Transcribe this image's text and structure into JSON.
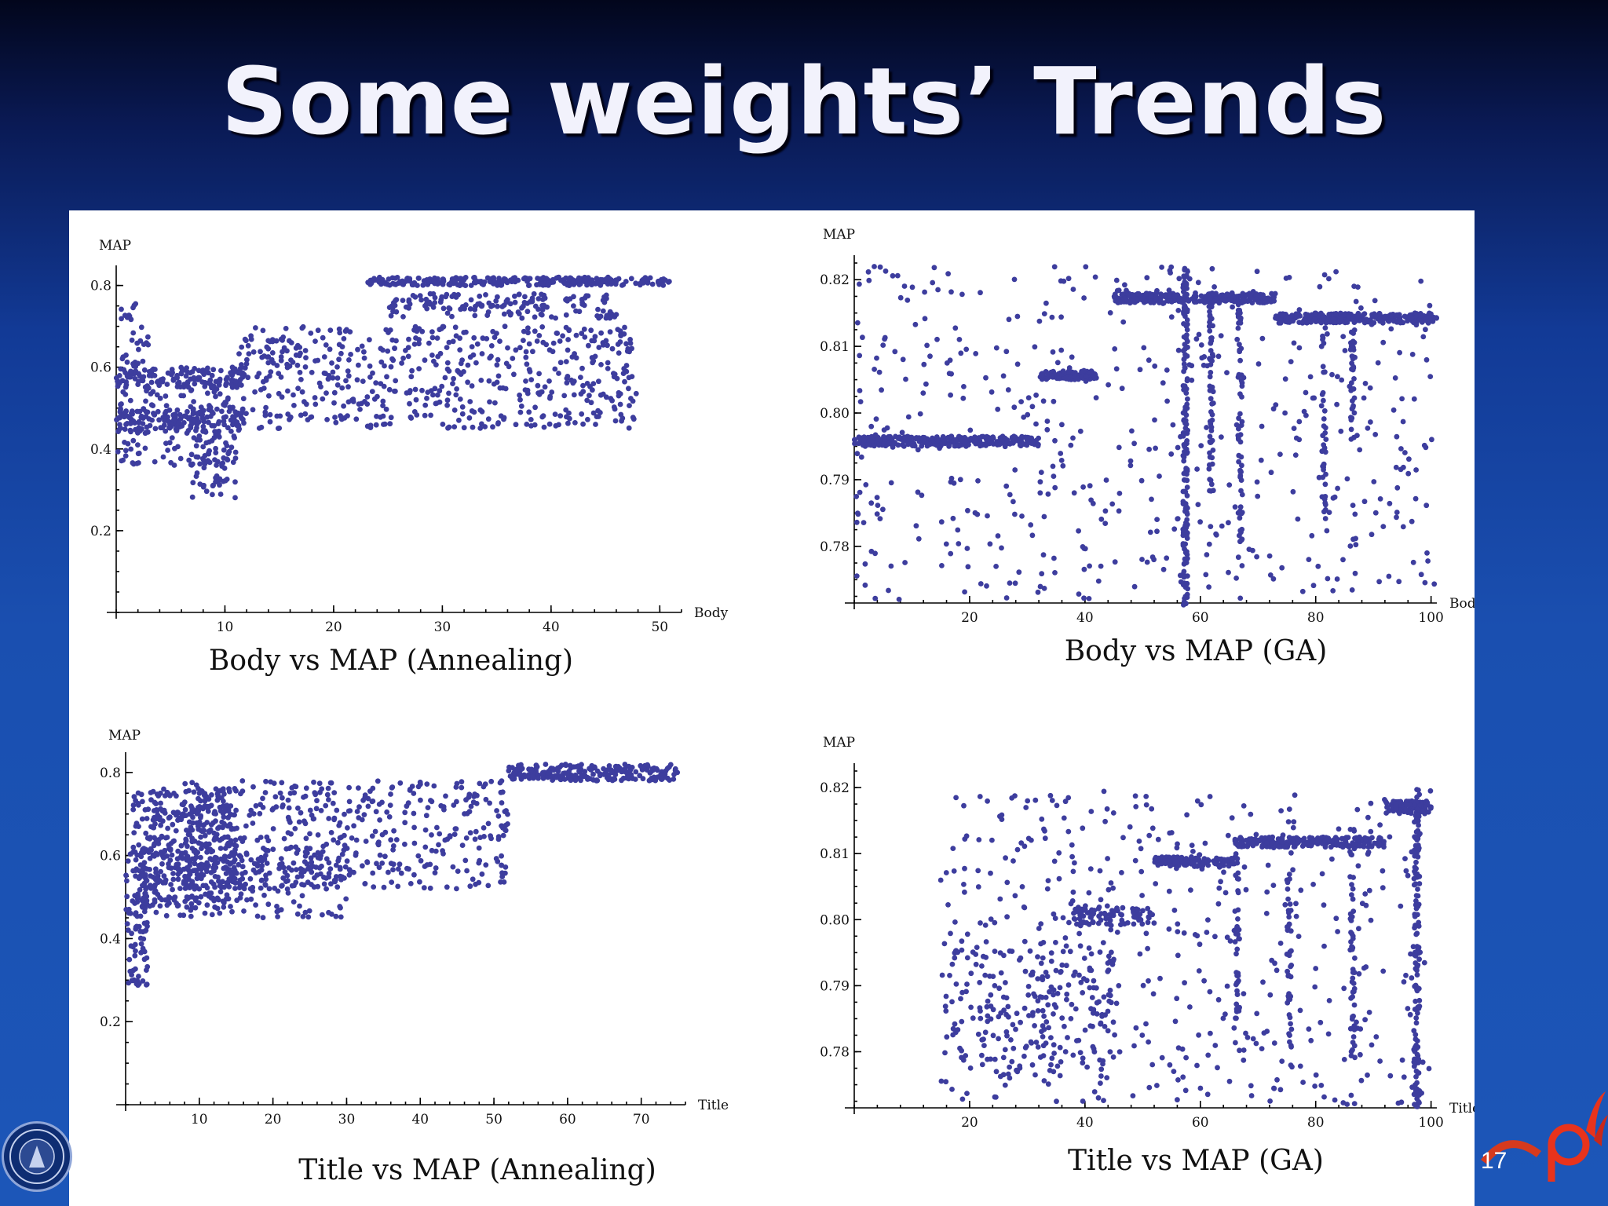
{
  "slide": {
    "title": "Some weights’ Trends",
    "page_number": "17",
    "colors": {
      "background": "#1a4fb0",
      "title": "#f2f2fc",
      "points": "#3d3d9e",
      "panel": "#ffffff",
      "logo_accent": "#e8331c"
    },
    "icons": [
      "university-seal-icon",
      "brand-logo-icon"
    ]
  },
  "chart_data": [
    {
      "type": "scatter",
      "caption": "Body vs MAP (Annealing)",
      "xlabel": "Body",
      "ylabel": "MAP",
      "xlim": [
        0,
        52
      ],
      "ylim": [
        0,
        0.83
      ],
      "xticks": [
        10,
        20,
        30,
        40,
        50
      ],
      "yticks": [
        0.2,
        0.4,
        0.6,
        0.8
      ],
      "xtick_labels": [
        "10",
        "20",
        "30",
        "40",
        "50"
      ],
      "ytick_labels": [
        "0.2",
        "0.4",
        "0.6",
        "0.8"
      ],
      "clusters": [
        {
          "x": [
            23,
            51
          ],
          "y": [
            0.8,
            0.82
          ],
          "n": 260
        },
        {
          "x": [
            0,
            12
          ],
          "y": [
            0.55,
            0.6
          ],
          "n": 150
        },
        {
          "x": [
            0,
            12
          ],
          "y": [
            0.44,
            0.5
          ],
          "n": 150
        },
        {
          "x": [
            0,
            11
          ],
          "y": [
            0.36,
            0.55
          ],
          "n": 150
        },
        {
          "x": [
            7,
            11
          ],
          "y": [
            0.28,
            0.4
          ],
          "n": 40
        },
        {
          "x": [
            11,
            48
          ],
          "y": [
            0.45,
            0.7
          ],
          "n": 560
        },
        {
          "x": [
            25,
            46
          ],
          "y": [
            0.72,
            0.78
          ],
          "n": 150
        },
        {
          "x": [
            0,
            3
          ],
          "y": [
            0.6,
            0.76
          ],
          "n": 30
        }
      ]
    },
    {
      "type": "scatter",
      "caption": "Body vs MAP (GA)",
      "xlabel": "Body",
      "ylabel": "MAP",
      "xlim": [
        0,
        101
      ],
      "ylim": [
        0.7715,
        0.8225
      ],
      "xticks": [
        20,
        40,
        60,
        80,
        100
      ],
      "yticks": [
        0.78,
        0.79,
        0.8,
        0.81,
        0.82
      ],
      "xtick_labels": [
        "20",
        "40",
        "60",
        "80",
        "100"
      ],
      "ytick_labels": [
        "0.78",
        "0.79",
        "0.80",
        "0.81",
        "0.82"
      ],
      "clusters": [
        {
          "x": [
            0,
            32
          ],
          "y": [
            0.795,
            0.7965
          ],
          "n": 260
        },
        {
          "x": [
            32,
            42
          ],
          "y": [
            0.805,
            0.8063
          ],
          "n": 90
        },
        {
          "x": [
            45,
            73
          ],
          "y": [
            0.8165,
            0.818
          ],
          "n": 260
        },
        {
          "x": [
            73,
            101
          ],
          "y": [
            0.8135,
            0.815
          ],
          "n": 260
        },
        {
          "x": [
            0,
            101
          ],
          "y": [
            0.772,
            0.822
          ],
          "n": 500
        },
        {
          "x": [
            57,
            57.8
          ],
          "y": [
            0.771,
            0.822
          ],
          "n": 160
        },
        {
          "x": [
            61.5,
            62.3
          ],
          "y": [
            0.788,
            0.818
          ],
          "n": 60
        },
        {
          "x": [
            66.5,
            67.3
          ],
          "y": [
            0.78,
            0.816
          ],
          "n": 60
        },
        {
          "x": [
            81,
            81.8
          ],
          "y": [
            0.785,
            0.813
          ],
          "n": 40
        },
        {
          "x": [
            86,
            86.8
          ],
          "y": [
            0.795,
            0.813
          ],
          "n": 40
        }
      ]
    },
    {
      "type": "scatter",
      "caption": "Title vs MAP (Annealing)",
      "xlabel": "Title",
      "ylabel": "MAP",
      "xlim": [
        0,
        76
      ],
      "ylim": [
        0,
        0.83
      ],
      "xticks": [
        10,
        20,
        30,
        40,
        50,
        60,
        70
      ],
      "yticks": [
        0.2,
        0.4,
        0.6,
        0.8
      ],
      "xtick_labels": [
        "10",
        "20",
        "30",
        "40",
        "50",
        "60",
        "70"
      ],
      "ytick_labels": [
        "0.2",
        "0.4",
        "0.6",
        "0.8"
      ],
      "clusters": [
        {
          "x": [
            52,
            75
          ],
          "y": [
            0.78,
            0.82
          ],
          "n": 240
        },
        {
          "x": [
            0,
            3
          ],
          "y": [
            0.28,
            0.62
          ],
          "n": 90
        },
        {
          "x": [
            1,
            15
          ],
          "y": [
            0.48,
            0.76
          ],
          "n": 360
        },
        {
          "x": [
            8,
            52
          ],
          "y": [
            0.52,
            0.78
          ],
          "n": 480
        },
        {
          "x": [
            2,
            30
          ],
          "y": [
            0.45,
            0.6
          ],
          "n": 200
        }
      ]
    },
    {
      "type": "scatter",
      "caption": "Title vs MAP (GA)",
      "xlabel": "Title",
      "ylabel": "MAP",
      "xlim": [
        0,
        101
      ],
      "ylim": [
        0.7715,
        0.8225
      ],
      "xticks": [
        20,
        40,
        60,
        80,
        100
      ],
      "yticks": [
        0.78,
        0.79,
        0.8,
        0.81,
        0.82
      ],
      "xtick_labels": [
        "20",
        "40",
        "60",
        "80",
        "100"
      ],
      "ytick_labels": [
        "0.78",
        "0.79",
        "0.80",
        "0.81",
        "0.82"
      ],
      "clusters": [
        {
          "x": [
            17,
            45
          ],
          "y": [
            0.776,
            0.797
          ],
          "n": 200
        },
        {
          "x": [
            38,
            52
          ],
          "y": [
            0.799,
            0.802
          ],
          "n": 80
        },
        {
          "x": [
            52,
            66
          ],
          "y": [
            0.808,
            0.8095
          ],
          "n": 120
        },
        {
          "x": [
            66,
            92
          ],
          "y": [
            0.811,
            0.8125
          ],
          "n": 220
        },
        {
          "x": [
            92,
            100
          ],
          "y": [
            0.816,
            0.818
          ],
          "n": 80
        },
        {
          "x": [
            15,
            100
          ],
          "y": [
            0.772,
            0.82
          ],
          "n": 480
        },
        {
          "x": [
            97,
            98
          ],
          "y": [
            0.771,
            0.82
          ],
          "n": 150
        },
        {
          "x": [
            66,
            66.8
          ],
          "y": [
            0.785,
            0.81
          ],
          "n": 40
        },
        {
          "x": [
            75,
            75.8
          ],
          "y": [
            0.78,
            0.81
          ],
          "n": 40
        },
        {
          "x": [
            86,
            86.8
          ],
          "y": [
            0.778,
            0.814
          ],
          "n": 50
        }
      ]
    }
  ]
}
